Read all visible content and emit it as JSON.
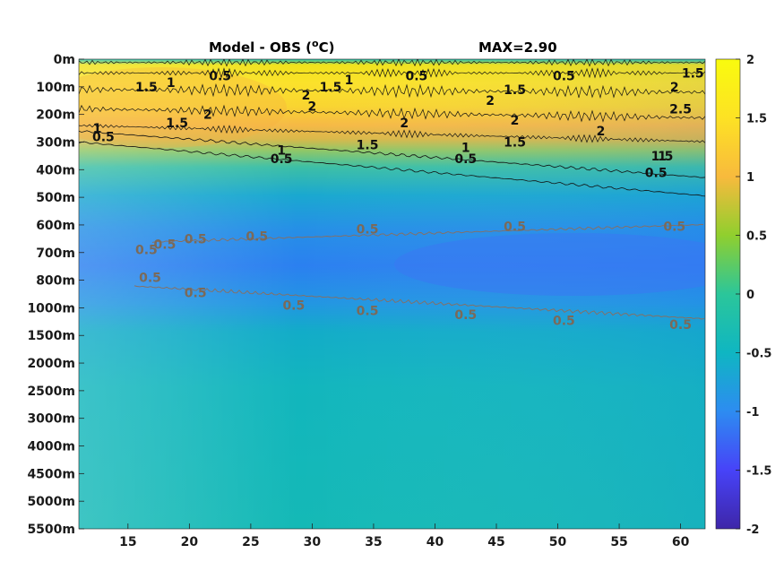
{
  "chart_data": {
    "type": "heatmap",
    "title": "Model - OBS (",
    "title_unit_sup": "o",
    "title_unit_end": "C)",
    "max_label": "MAX=2.90",
    "x_ticks": [
      15,
      20,
      25,
      30,
      35,
      40,
      45,
      50,
      55,
      60
    ],
    "xlim": [
      11,
      62
    ],
    "y_ticks": [
      "0m",
      "100m",
      "200m",
      "300m",
      "400m",
      "500m",
      "600m",
      "700m",
      "800m",
      "1000m",
      "1500m",
      "2000m",
      "2500m",
      "3000m",
      "4000m",
      "4500m",
      "5000m",
      "5500m"
    ],
    "colorbar": {
      "ticks": [
        "2",
        "1.5",
        "1",
        "0.5",
        "0",
        "-0.5",
        "-1",
        "-1.5",
        "-2"
      ],
      "range": [
        -2,
        2
      ],
      "colormap": [
        "#3e26a8",
        "#4743f8",
        "#2d8cf1",
        "#0fb6c2",
        "#2bc69a",
        "#90cf2e",
        "#f8ba3d",
        "#fde224",
        "#f9fb0e"
      ]
    },
    "contour_labels": [
      {
        "text": "0.5",
        "x": 22.5,
        "level": 0.6,
        "color": "#111111"
      },
      {
        "text": "0.5",
        "x": 38.5,
        "level": 0.6,
        "color": "#111111"
      },
      {
        "text": "0.5",
        "x": 50.5,
        "level": 0.6,
        "color": "#111111"
      },
      {
        "text": "1.5",
        "x": 16.5,
        "level": 1.0,
        "color": "#111111"
      },
      {
        "text": "1",
        "x": 18.5,
        "level": 0.85,
        "color": "#111111"
      },
      {
        "text": "1.5",
        "x": 31.5,
        "level": 1.0,
        "color": "#111111"
      },
      {
        "text": "1",
        "x": 33.0,
        "level": 0.75,
        "color": "#111111"
      },
      {
        "text": "2",
        "x": 29.5,
        "level": 1.3,
        "color": "#111111"
      },
      {
        "text": "2",
        "x": 30.0,
        "level": 1.7,
        "color": "#111111"
      },
      {
        "text": "1.5",
        "x": 46.5,
        "level": 1.1,
        "color": "#111111"
      },
      {
        "text": "2",
        "x": 44.5,
        "level": 1.5,
        "color": "#111111"
      },
      {
        "text": "1.5",
        "x": 61.0,
        "level": 0.5,
        "color": "#111111"
      },
      {
        "text": "2",
        "x": 59.5,
        "level": 1.0,
        "color": "#111111"
      },
      {
        "text": "2.5",
        "x": 60.0,
        "level": 1.8,
        "color": "#111111"
      },
      {
        "text": "2",
        "x": 21.5,
        "level": 2.0,
        "color": "#111111"
      },
      {
        "text": "1.5",
        "x": 19.0,
        "level": 2.3,
        "color": "#111111"
      },
      {
        "text": "1",
        "x": 12.5,
        "level": 2.5,
        "color": "#111111"
      },
      {
        "text": "0.5",
        "x": 13.0,
        "level": 2.8,
        "color": "#111111"
      },
      {
        "text": "2",
        "x": 37.5,
        "level": 2.3,
        "color": "#111111"
      },
      {
        "text": "2",
        "x": 46.5,
        "level": 2.2,
        "color": "#111111"
      },
      {
        "text": "2",
        "x": 53.5,
        "level": 2.6,
        "color": "#111111"
      },
      {
        "text": "1.5",
        "x": 34.5,
        "level": 3.1,
        "color": "#111111"
      },
      {
        "text": "1.5",
        "x": 46.5,
        "level": 3.0,
        "color": "#111111"
      },
      {
        "text": "1.5",
        "x": 58.5,
        "level": 3.5,
        "color": "#111111"
      },
      {
        "text": "1",
        "x": 27.5,
        "level": 3.3,
        "color": "#111111"
      },
      {
        "text": "1",
        "x": 42.5,
        "level": 3.2,
        "color": "#111111"
      },
      {
        "text": "1",
        "x": 58.5,
        "level": 3.5,
        "color": "#111111"
      },
      {
        "text": "0.5",
        "x": 27.5,
        "level": 3.6,
        "color": "#111111"
      },
      {
        "text": "0.5",
        "x": 42.5,
        "level": 3.6,
        "color": "#111111"
      },
      {
        "text": "0.5",
        "x": 58.0,
        "level": 4.1,
        "color": "#111111"
      },
      {
        "text": "0.5",
        "x": 18.0,
        "level": 6.7,
        "color": "#7a6a5a"
      },
      {
        "text": "0.5",
        "x": 20.5,
        "level": 6.5,
        "color": "#7a6a5a"
      },
      {
        "text": "0.5",
        "x": 25.5,
        "level": 6.4,
        "color": "#7a6a5a"
      },
      {
        "text": "0.5",
        "x": 34.5,
        "level": 6.15,
        "color": "#7a6a5a"
      },
      {
        "text": "0.5",
        "x": 46.5,
        "level": 6.05,
        "color": "#7a6a5a"
      },
      {
        "text": "0.5",
        "x": 59.5,
        "level": 6.05,
        "color": "#7a6a5a"
      },
      {
        "text": "0.5",
        "x": 16.5,
        "level": 6.9,
        "color": "#7a6a5a"
      },
      {
        "text": "0.5",
        "x": 16.8,
        "level": 7.9,
        "color": "#7a6a5a"
      },
      {
        "text": "0.5",
        "x": 20.5,
        "level": 8.45,
        "color": "#7a6a5a"
      },
      {
        "text": "0.5",
        "x": 28.5,
        "level": 8.9,
        "color": "#7a6a5a"
      },
      {
        "text": "0.5",
        "x": 34.5,
        "level": 9.1,
        "color": "#7a6a5a"
      },
      {
        "text": "0.5",
        "x": 42.5,
        "level": 9.25,
        "color": "#7a6a5a"
      },
      {
        "text": "0.5",
        "x": 50.5,
        "level": 9.45,
        "color": "#7a6a5a"
      },
      {
        "text": "0.5",
        "x": 60.0,
        "level": 9.6,
        "color": "#7a6a5a"
      }
    ]
  }
}
